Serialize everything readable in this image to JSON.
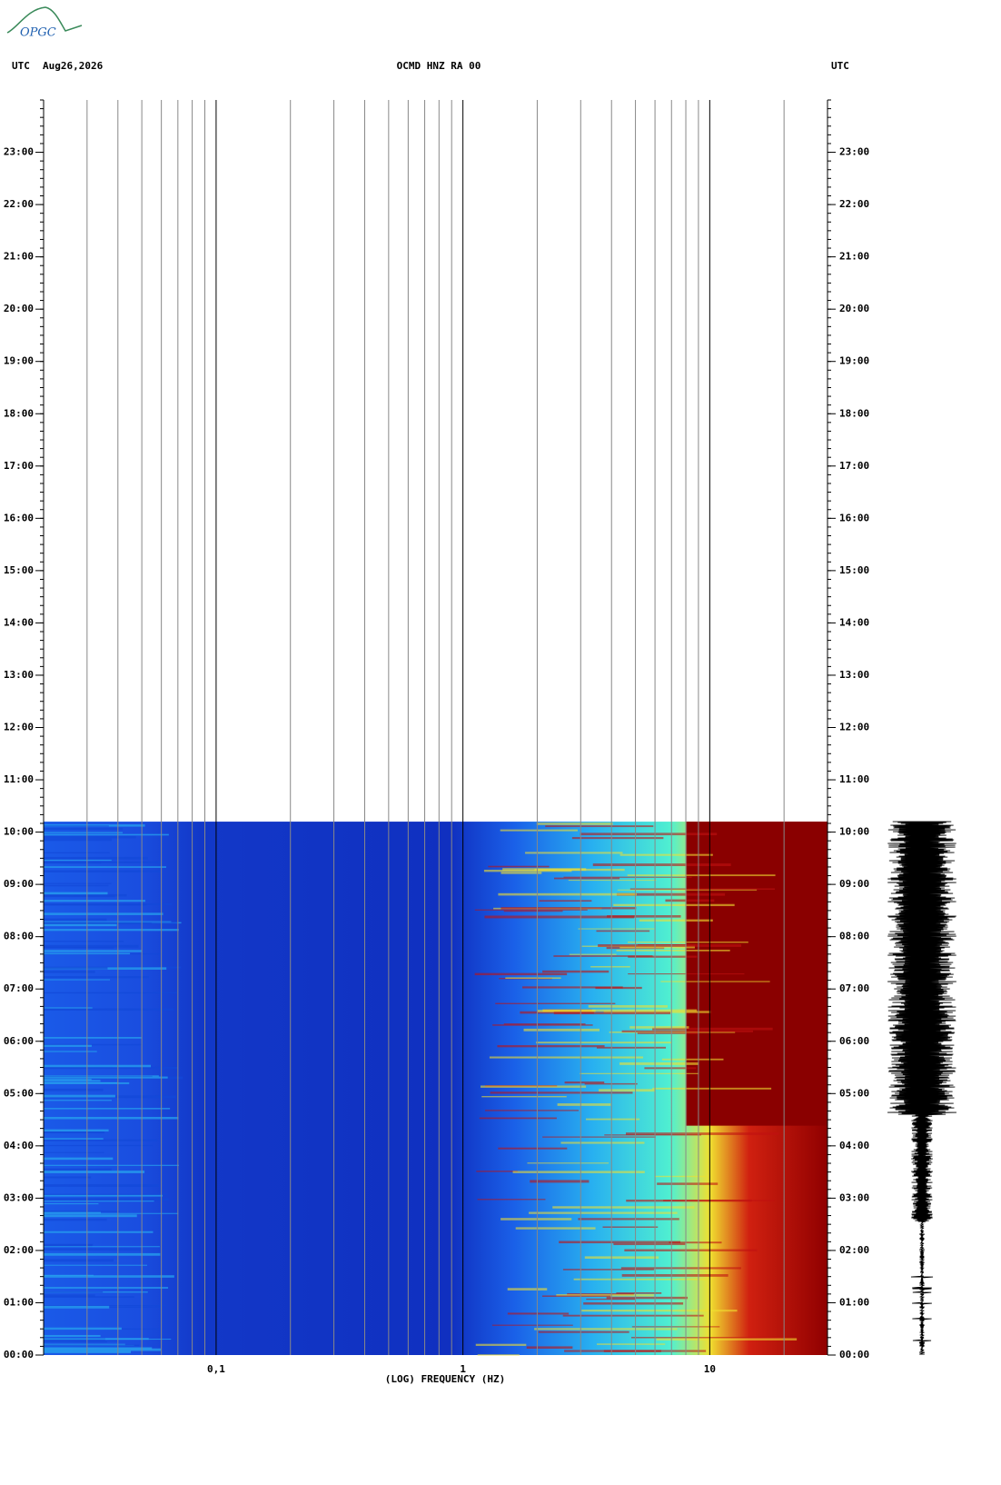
{
  "logo": "OPGC",
  "chart_data": {
    "type": "spectrogram",
    "header_left": "UTC",
    "date": "Aug26,2026",
    "title": "OCMD HNZ RA 00",
    "header_right": "UTC",
    "xlabel": "(LOG) FREQUENCY (HZ)",
    "xscale": "log",
    "xlim": [
      0.02,
      30
    ],
    "xticks": [
      {
        "value": 0.1,
        "label": "0,1"
      },
      1,
      10
    ],
    "ylim": [
      0,
      24
    ],
    "yticks": [
      {
        "value": 0,
        "label": "00:00"
      },
      {
        "value": 1,
        "label": "01:00"
      },
      {
        "value": 2,
        "label": "02:00"
      },
      {
        "value": 3,
        "label": "03:00"
      },
      {
        "value": 4,
        "label": "04:00"
      },
      {
        "value": 5,
        "label": "05:00"
      },
      {
        "value": 6,
        "label": "06:00"
      },
      {
        "value": 7,
        "label": "07:00"
      },
      {
        "value": 8,
        "label": "08:00"
      },
      {
        "value": 9,
        "label": "09:00"
      },
      {
        "value": 10,
        "label": "10:00"
      },
      {
        "value": 11,
        "label": "11:00"
      },
      {
        "value": 12,
        "label": "12:00"
      },
      {
        "value": 13,
        "label": "13:00"
      },
      {
        "value": 14,
        "label": "14:00"
      },
      {
        "value": 15,
        "label": "15:00"
      },
      {
        "value": 16,
        "label": "16:00"
      },
      {
        "value": 17,
        "label": "17:00"
      },
      {
        "value": 18,
        "label": "18:00"
      },
      {
        "value": 19,
        "label": "19:00"
      },
      {
        "value": 20,
        "label": "20:00"
      },
      {
        "value": 21,
        "label": "21:00"
      },
      {
        "value": 22,
        "label": "22:00"
      },
      {
        "value": 23,
        "label": "23:00"
      }
    ],
    "data_end": 10.2,
    "grid": true
  }
}
